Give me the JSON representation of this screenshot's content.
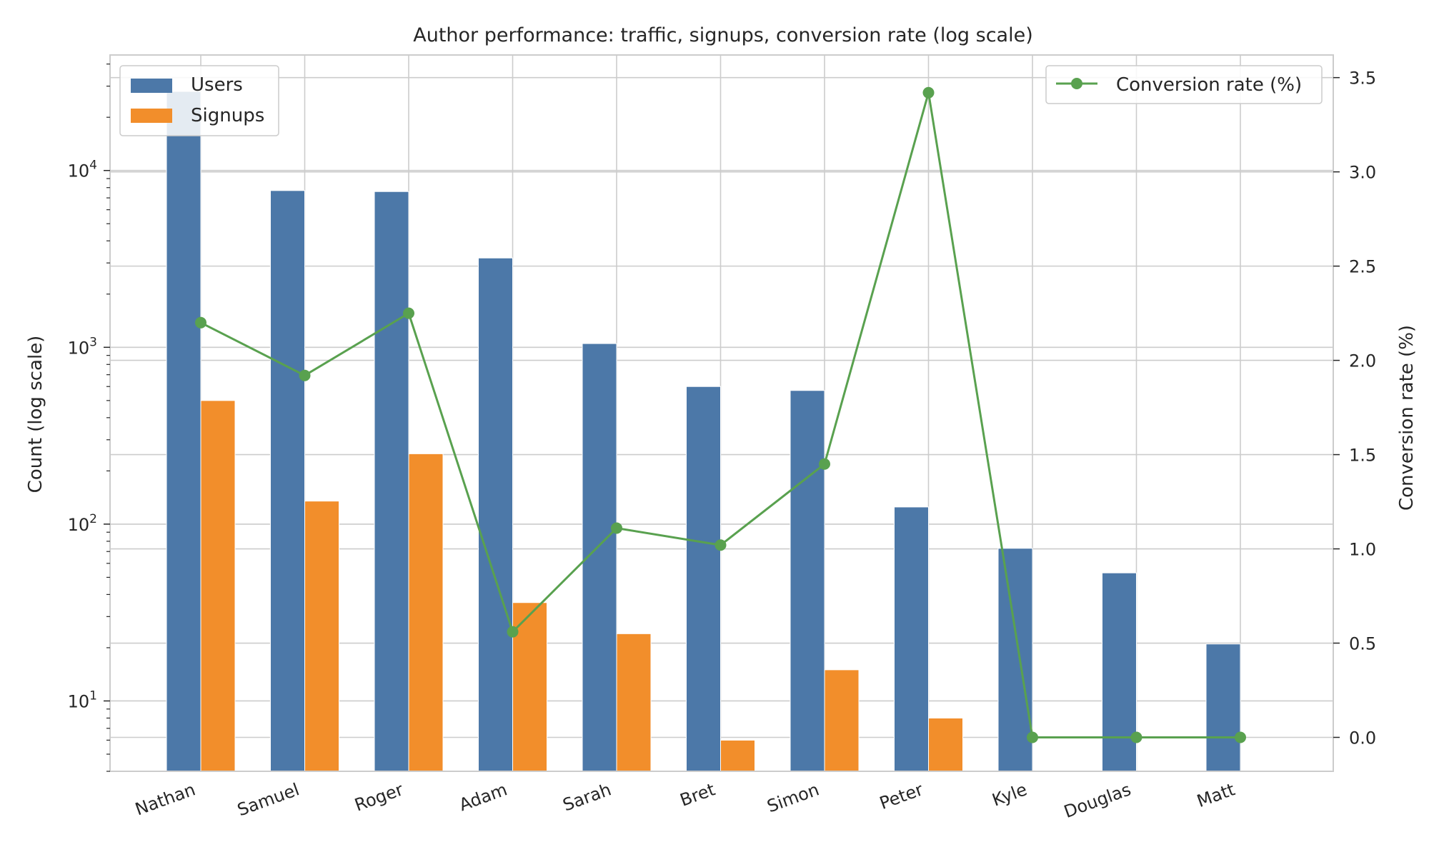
{
  "chart_data": {
    "type": "bar",
    "title": "Author performance: traffic, signups, conversion rate (log scale)",
    "ylabel_left": "Count (log scale)",
    "ylabel_right": "Conversion rate (%)",
    "yscale_left": "log",
    "ylim_left": [
      4,
      45000
    ],
    "ylim_right": [
      -0.18,
      3.62
    ],
    "right_ticks": [
      0.0,
      0.5,
      1.0,
      1.5,
      2.0,
      2.5,
      3.0,
      3.5
    ],
    "left_ticks": [
      10,
      100,
      1000,
      10000
    ],
    "grid": true,
    "categories": [
      "Nathan",
      "Samuel",
      "Roger",
      "Adam",
      "Sarah",
      "Bret",
      "Simon",
      "Peter",
      "Kyle",
      "Douglas",
      "Matt"
    ],
    "series": [
      {
        "name": "Users",
        "axis": "left",
        "kind": "bar",
        "color": "#4c78a8",
        "values": [
          28000,
          7700,
          7600,
          3200,
          1050,
          600,
          570,
          125,
          73,
          53,
          21
        ]
      },
      {
        "name": "Signups",
        "axis": "left",
        "kind": "bar",
        "color": "#f28e2b",
        "values": [
          500,
          135,
          250,
          36,
          24,
          6,
          15,
          8,
          null,
          null,
          null
        ]
      },
      {
        "name": "Conversion rate (%)",
        "axis": "right",
        "kind": "line",
        "color": "#59a14f",
        "values": [
          2.2,
          1.92,
          2.25,
          0.56,
          1.11,
          1.02,
          1.45,
          3.42,
          0.0,
          0.0,
          0.0
        ]
      }
    ],
    "legend_left": {
      "placement": "top-left",
      "entries": [
        "Users",
        "Signups"
      ]
    },
    "legend_right": {
      "placement": "top-right",
      "entries": [
        "Conversion rate (%)"
      ]
    }
  }
}
